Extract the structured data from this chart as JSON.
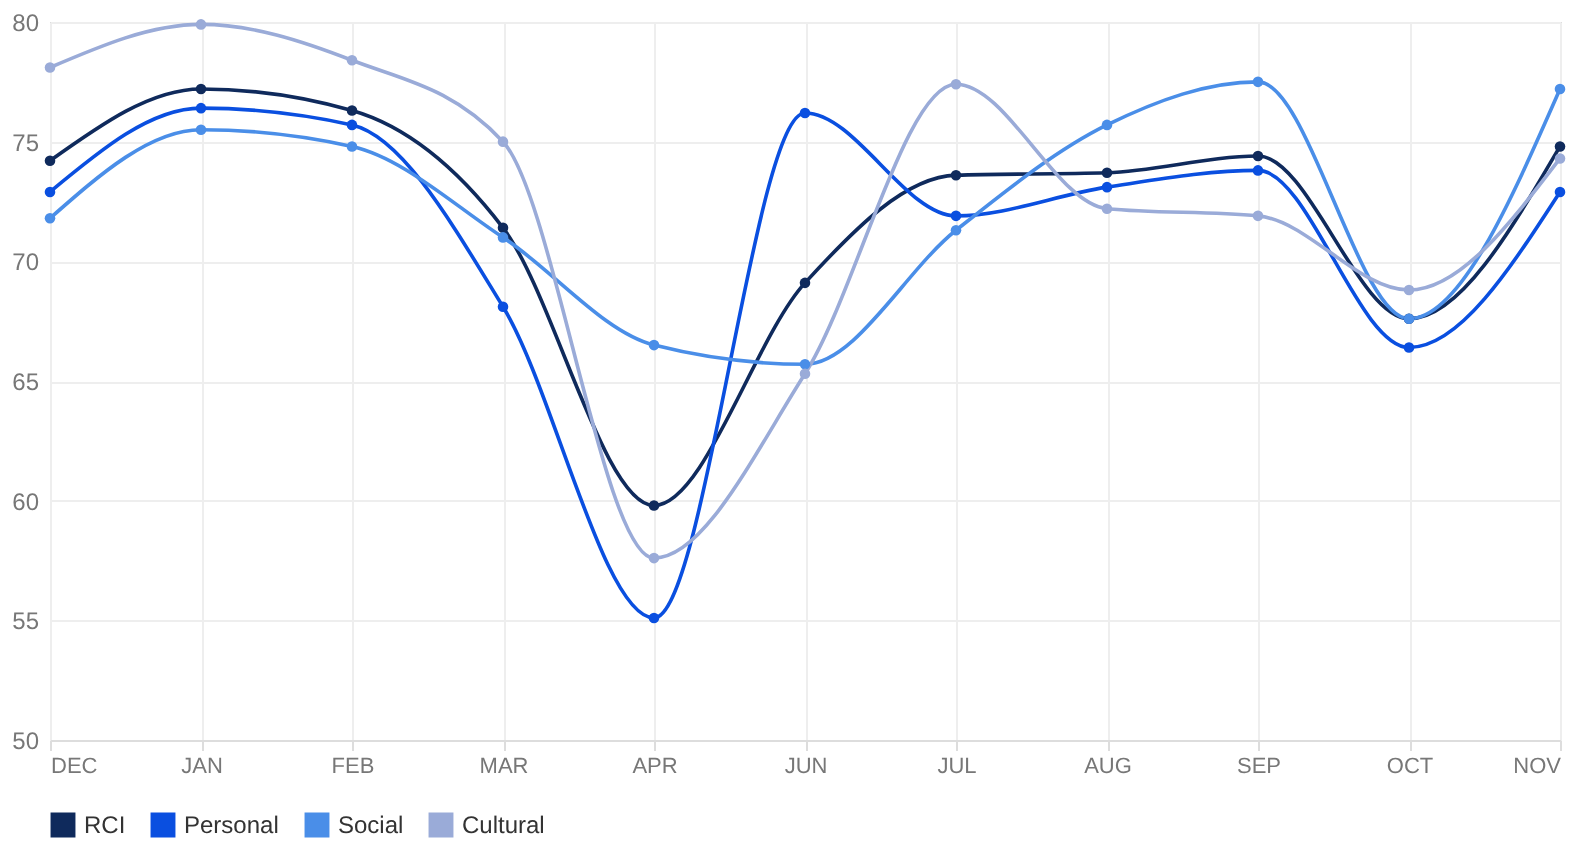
{
  "chart_data": {
    "type": "line",
    "categories": [
      "DEC",
      "JAN",
      "FEB",
      "MAR",
      "APR",
      "JUN",
      "JUL",
      "AUG",
      "SEP",
      "OCT",
      "NOV"
    ],
    "series": [
      {
        "name": "RCI",
        "color": "#0f2a5c",
        "values": [
          74.2,
          77.2,
          76.3,
          71.4,
          59.8,
          69.1,
          73.6,
          73.7,
          74.4,
          67.6,
          74.8
        ]
      },
      {
        "name": "Personal",
        "color": "#0a4fe0",
        "values": [
          72.9,
          76.4,
          75.7,
          68.1,
          55.1,
          76.2,
          71.9,
          73.1,
          73.8,
          66.4,
          72.9
        ]
      },
      {
        "name": "Social",
        "color": "#4a8ee8",
        "values": [
          71.8,
          75.5,
          74.8,
          71.0,
          66.5,
          65.7,
          71.3,
          75.7,
          77.5,
          67.6,
          77.2
        ]
      },
      {
        "name": "Cultural",
        "color": "#9aabd8",
        "values": [
          78.1,
          79.9,
          78.4,
          75.0,
          57.6,
          65.3,
          77.4,
          72.2,
          71.9,
          68.8,
          74.3
        ]
      }
    ],
    "ylim": [
      50,
      80
    ],
    "yticks": [
      50,
      55,
      60,
      65,
      70,
      75,
      80
    ],
    "grid": true,
    "legend": "bottom",
    "marker": "circle",
    "line_style": "solid"
  }
}
